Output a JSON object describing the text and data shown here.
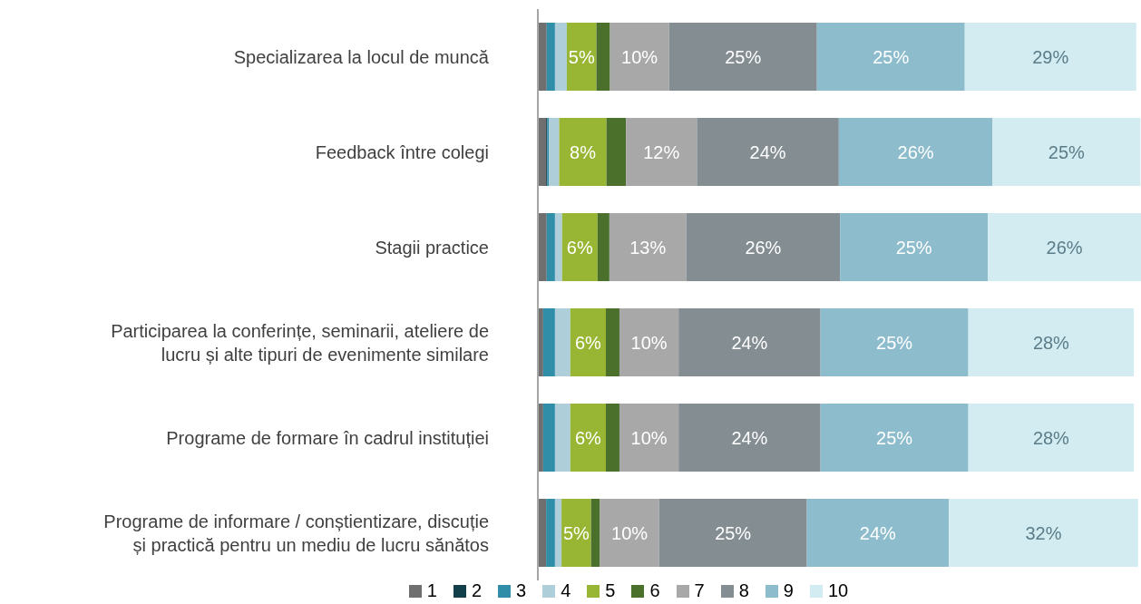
{
  "chart_data": {
    "type": "bar",
    "orientation": "horizontal",
    "stacked": true,
    "legend": "bottom",
    "tick_labels": "y",
    "xlim": [
      0,
      102
    ],
    "categories": [
      "Specializarea la locul de muncă",
      "Feedback între colegi",
      "Stagii practice",
      "Participarea la conferințe, seminarii, ateliere de lucru și alte tipuri de evenimente similare",
      "Programe de formare în cadrul instituției",
      "Programe de informare / conștientizare, discuție și practică pentru un mediu de lucru sănătos"
    ],
    "series": [
      {
        "name": "1",
        "color": "#6f6f6f",
        "values": [
          1.5,
          1.4,
          1.5,
          0.9,
          0.9,
          1.4
        ]
      },
      {
        "name": "2",
        "color": "#123f4a",
        "values": [
          0,
          0.2,
          0,
          0,
          0,
          0
        ]
      },
      {
        "name": "3",
        "color": "#318ea8",
        "values": [
          1.4,
          0.3,
          1.4,
          2,
          2,
          1.5
        ]
      },
      {
        "name": "4",
        "color": "#aecfda",
        "values": [
          2,
          1.7,
          1.2,
          2.6,
          2.6,
          1.1
        ]
      },
      {
        "name": "5",
        "color": "#98b533",
        "values": [
          5,
          8,
          6,
          6,
          6,
          5
        ],
        "value_labels": [
          "5%",
          "8%",
          "6%",
          "6%",
          "6%",
          "5%"
        ]
      },
      {
        "name": "6",
        "color": "#4a702c",
        "values": [
          2.3,
          3.3,
          2,
          2.3,
          2.3,
          1.5
        ]
      },
      {
        "name": "7",
        "color": "#a8a8a8",
        "values": [
          10,
          12,
          13,
          10,
          10,
          10
        ],
        "value_labels": [
          "10%",
          "12%",
          "13%",
          "10%",
          "10%",
          "10%"
        ]
      },
      {
        "name": "8",
        "color": "#838d92",
        "values": [
          25,
          24,
          26,
          24,
          24,
          25
        ],
        "value_labels": [
          "25%",
          "24%",
          "26%",
          "24%",
          "24%",
          "25%"
        ]
      },
      {
        "name": "9",
        "color": "#8dbccd",
        "values": [
          25,
          26,
          25,
          25,
          25,
          24
        ],
        "value_labels": [
          "25%",
          "26%",
          "25%",
          "25%",
          "25%",
          "24%"
        ]
      },
      {
        "name": "10",
        "color": "#d2ecf2",
        "values": [
          29,
          25,
          26,
          28,
          28,
          32
        ],
        "value_labels": [
          "29%",
          "25%",
          "26%",
          "28%",
          "28%",
          "32%"
        ]
      }
    ]
  }
}
